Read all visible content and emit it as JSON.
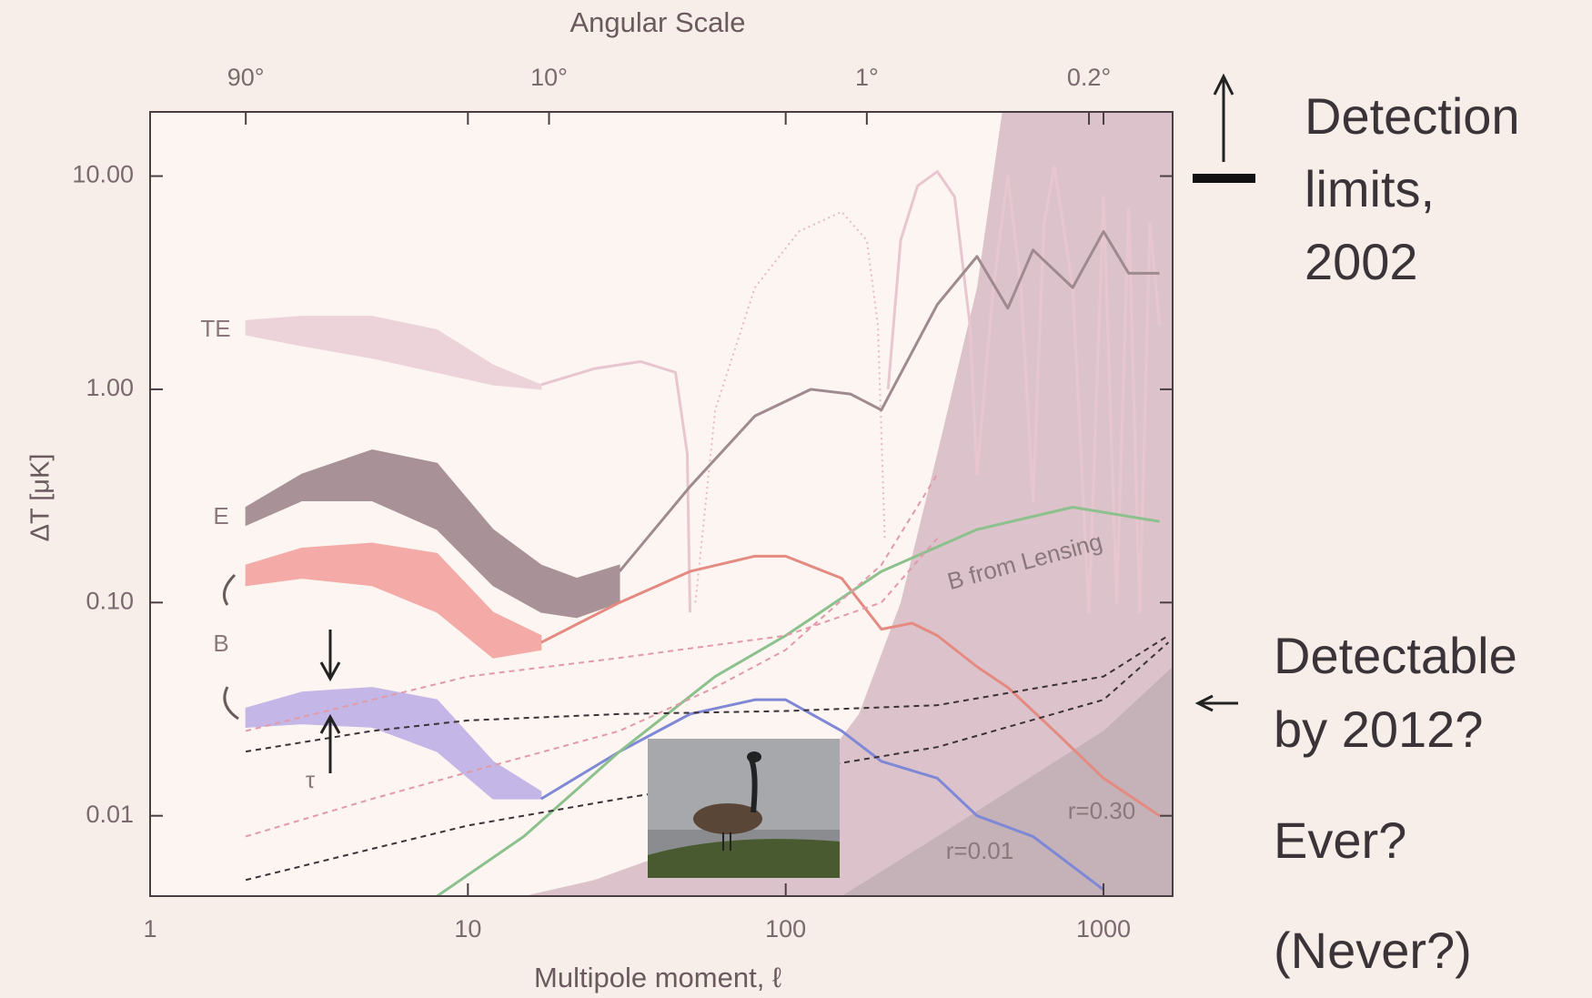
{
  "chart_data": {
    "type": "line",
    "title": "Angular Scale",
    "x_label": "Multipole moment, ℓ",
    "y_label": "ΔT [μK]",
    "log_x": true,
    "log_y": true,
    "xlim": [
      1,
      1650
    ],
    "ylim": [
      0.0042,
      20
    ],
    "xticks": [
      1,
      10,
      100,
      1000
    ],
    "yticks": [
      {
        "value": 10,
        "label": "10.00"
      },
      {
        "value": 1,
        "label": "1.00"
      },
      {
        "value": 0.1,
        "label": "0.10"
      },
      {
        "value": 0.01,
        "label": "0.01"
      }
    ],
    "x2ticks": [
      {
        "value": 90,
        "label": "90°"
      },
      {
        "value": 10,
        "label": "10°"
      },
      {
        "value": 1,
        "label": "1°"
      },
      {
        "value": 0.2,
        "label": "0.2°"
      }
    ],
    "regions": [
      {
        "color": "#dcc3cb",
        "x": [
          480,
          400,
          300,
          230,
          170,
          120,
          60,
          25,
          15
        ],
        "values": [
          20,
          3,
          0.5,
          0.1,
          0.03,
          0.015,
          0.008,
          0.005,
          0.0042
        ]
      },
      {
        "color": "#c4b2b8",
        "x": [
          1650,
          1000,
          500,
          300,
          150
        ],
        "values": [
          0.05,
          0.025,
          0.013,
          0.008,
          0.0042
        ]
      }
    ],
    "bands": [
      {
        "color": "#ecd3da",
        "x": [
          2,
          3,
          5,
          8,
          12,
          17
        ],
        "upper": [
          2.1,
          2.2,
          2.2,
          1.9,
          1.3,
          1.05
        ],
        "lower": [
          1.8,
          1.6,
          1.4,
          1.2,
          1.05,
          1.0
        ]
      },
      {
        "color": "#a89297",
        "x": [
          2,
          3,
          5,
          8,
          12,
          17,
          22,
          30
        ],
        "upper": [
          0.28,
          0.4,
          0.52,
          0.45,
          0.22,
          0.15,
          0.13,
          0.15
        ],
        "lower": [
          0.23,
          0.3,
          0.3,
          0.22,
          0.12,
          0.09,
          0.085,
          0.1
        ]
      },
      {
        "color": "#f4aaa6",
        "x": [
          2,
          3,
          5,
          8,
          12,
          17
        ],
        "upper": [
          0.15,
          0.18,
          0.19,
          0.17,
          0.09,
          0.07
        ],
        "lower": [
          0.12,
          0.13,
          0.12,
          0.09,
          0.055,
          0.06
        ]
      },
      {
        "color": "#c4b6e6",
        "x": [
          2,
          3,
          5,
          8,
          12,
          17
        ],
        "upper": [
          0.032,
          0.038,
          0.04,
          0.035,
          0.018,
          0.013
        ],
        "lower": [
          0.026,
          0.027,
          0.026,
          0.02,
          0.012,
          0.012
        ]
      }
    ],
    "series": [
      {
        "color": "#e8c6d0",
        "line_style": "solid",
        "x": [
          17,
          25,
          35,
          45,
          49,
          50
        ],
        "values": [
          1.05,
          1.25,
          1.35,
          1.2,
          0.5,
          0.09
        ]
      },
      {
        "color": "#e8b8c8",
        "line_style": "dotted",
        "x": [
          52,
          60,
          80,
          110,
          150,
          180,
          195,
          205
        ],
        "values": [
          0.1,
          0.8,
          3,
          5.5,
          6.8,
          5,
          2,
          0.2
        ]
      },
      {
        "color": "#e8c6d0",
        "line_style": "solid",
        "x": [
          210,
          230,
          260,
          300,
          340,
          380,
          400,
          450,
          500,
          550,
          600,
          650,
          700,
          800,
          900,
          1000,
          1100,
          1200,
          1300,
          1400,
          1500
        ],
        "values": [
          1,
          5,
          9,
          10.5,
          8,
          2,
          0.4,
          3,
          10,
          3,
          0.3,
          6,
          11,
          3,
          0.09,
          8,
          0.1,
          7,
          0.09,
          6,
          2
        ]
      },
      {
        "color": "#9e8a8f",
        "line_style": "solid",
        "x": [
          30,
          50,
          80,
          120,
          160,
          200,
          300,
          400,
          500,
          600,
          800,
          1000,
          1200,
          1500
        ],
        "values": [
          0.14,
          0.35,
          0.75,
          1.0,
          0.95,
          0.8,
          2.5,
          4.2,
          2.4,
          4.5,
          3,
          5.5,
          3.5,
          3.5
        ]
      },
      {
        "color": "#e58a80",
        "line_style": "solid",
        "x": [
          17,
          30,
          50,
          80,
          100,
          150,
          200,
          250,
          300,
          400,
          500,
          700,
          1000,
          1500
        ],
        "values": [
          0.065,
          0.1,
          0.14,
          0.165,
          0.165,
          0.13,
          0.075,
          0.08,
          0.07,
          0.05,
          0.04,
          0.025,
          0.015,
          0.01
        ]
      },
      {
        "color": "#7f88d6",
        "line_style": "solid",
        "x": [
          17,
          30,
          50,
          80,
          100,
          150,
          200,
          300,
          400,
          600,
          1000
        ],
        "values": [
          0.012,
          0.02,
          0.03,
          0.035,
          0.035,
          0.025,
          0.018,
          0.015,
          0.01,
          0.008,
          0.0045
        ]
      },
      {
        "color": "#8cc08c",
        "line_style": "solid",
        "x": [
          8,
          15,
          30,
          60,
          100,
          200,
          400,
          800,
          1500
        ],
        "values": [
          0.0042,
          0.008,
          0.02,
          0.045,
          0.07,
          0.14,
          0.22,
          0.28,
          0.24
        ]
      },
      {
        "color": "#3a3236",
        "line_style": "dashed",
        "x": [
          2,
          5,
          10,
          30,
          100,
          300,
          1000,
          1600
        ],
        "values": [
          0.02,
          0.025,
          0.028,
          0.03,
          0.031,
          0.033,
          0.045,
          0.07
        ]
      },
      {
        "color": "#3a3236",
        "line_style": "dashed",
        "x": [
          2,
          5,
          10,
          30,
          100,
          300,
          1000,
          1600
        ],
        "values": [
          0.005,
          0.007,
          0.009,
          0.012,
          0.016,
          0.021,
          0.035,
          0.065
        ]
      },
      {
        "color": "#e29aa8",
        "line_style": "dashed",
        "x": [
          2,
          5,
          10,
          30,
          100,
          200,
          300
        ],
        "values": [
          0.025,
          0.035,
          0.045,
          0.055,
          0.07,
          0.1,
          0.2
        ]
      },
      {
        "color": "#e29aa8",
        "line_style": "dashed",
        "x": [
          2,
          5,
          10,
          30,
          60,
          100,
          200,
          300
        ],
        "values": [
          0.008,
          0.012,
          0.016,
          0.025,
          0.04,
          0.06,
          0.15,
          0.4
        ]
      }
    ],
    "annotations": [
      "TE",
      "E",
      "B",
      "τ",
      "B from Lensing",
      "r=0.30",
      "r=0.01"
    ],
    "side_notes": [
      "Detection",
      "limits,",
      "2002",
      "Detectable",
      "by 2012?",
      "Ever?",
      "(Never?)"
    ]
  }
}
